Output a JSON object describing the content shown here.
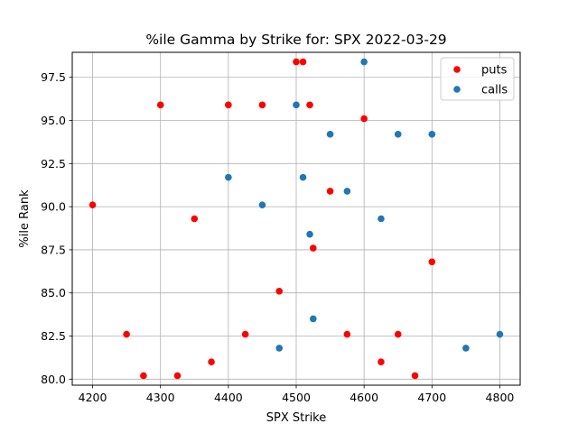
{
  "chart_data": {
    "type": "scatter",
    "title": "%ile Gamma by Strike for: SPX 2022-03-29",
    "xlabel": "SPX Strike",
    "ylabel": "%ile Rank",
    "xlim": [
      4170,
      4830
    ],
    "ylim": [
      79.65,
      98.95
    ],
    "xticks": [
      4200,
      4300,
      4400,
      4500,
      4600,
      4700,
      4800
    ],
    "xtick_labels": [
      "4200",
      "4300",
      "4400",
      "4500",
      "4600",
      "4700",
      "4800"
    ],
    "yticks": [
      80.0,
      82.5,
      85.0,
      87.5,
      90.0,
      92.5,
      95.0,
      97.5
    ],
    "ytick_labels": [
      "80.0",
      "82.5",
      "85.0",
      "87.5",
      "90.0",
      "92.5",
      "95.0",
      "97.5"
    ],
    "grid": true,
    "legend_position": "top-right",
    "series": [
      {
        "name": "puts",
        "color": "#ff0000",
        "points": [
          {
            "x": 4200,
            "y": 90.1
          },
          {
            "x": 4250,
            "y": 82.6
          },
          {
            "x": 4275,
            "y": 80.2
          },
          {
            "x": 4300,
            "y": 95.9
          },
          {
            "x": 4325,
            "y": 80.2
          },
          {
            "x": 4350,
            "y": 89.3
          },
          {
            "x": 4375,
            "y": 81.0
          },
          {
            "x": 4400,
            "y": 95.9
          },
          {
            "x": 4425,
            "y": 82.6
          },
          {
            "x": 4450,
            "y": 95.9
          },
          {
            "x": 4475,
            "y": 85.1
          },
          {
            "x": 4500,
            "y": 98.4
          },
          {
            "x": 4510,
            "y": 98.4
          },
          {
            "x": 4520,
            "y": 95.9
          },
          {
            "x": 4525,
            "y": 87.6
          },
          {
            "x": 4550,
            "y": 90.9
          },
          {
            "x": 4575,
            "y": 82.6
          },
          {
            "x": 4600,
            "y": 95.1
          },
          {
            "x": 4625,
            "y": 81.0
          },
          {
            "x": 4650,
            "y": 82.6
          },
          {
            "x": 4675,
            "y": 80.2
          },
          {
            "x": 4700,
            "y": 86.8
          }
        ]
      },
      {
        "name": "calls",
        "color": "#1f77b4",
        "points": [
          {
            "x": 4400,
            "y": 91.7
          },
          {
            "x": 4450,
            "y": 90.1
          },
          {
            "x": 4475,
            "y": 81.8
          },
          {
            "x": 4500,
            "y": 95.9
          },
          {
            "x": 4510,
            "y": 91.7
          },
          {
            "x": 4520,
            "y": 88.4
          },
          {
            "x": 4525,
            "y": 83.5
          },
          {
            "x": 4550,
            "y": 94.2
          },
          {
            "x": 4575,
            "y": 90.9
          },
          {
            "x": 4600,
            "y": 98.4
          },
          {
            "x": 4625,
            "y": 89.3
          },
          {
            "x": 4650,
            "y": 94.2
          },
          {
            "x": 4700,
            "y": 94.2
          },
          {
            "x": 4750,
            "y": 81.8
          },
          {
            "x": 4800,
            "y": 82.6
          }
        ]
      }
    ]
  }
}
